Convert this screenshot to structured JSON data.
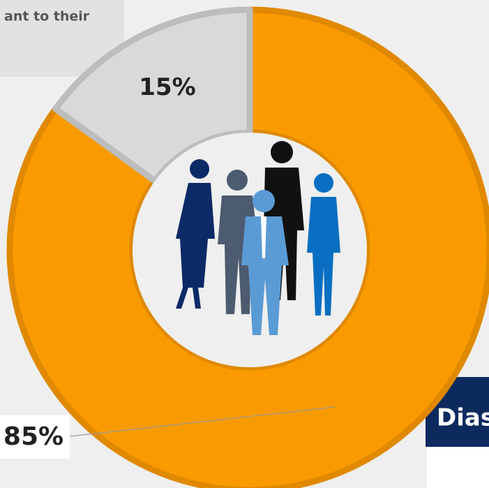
{
  "chart_data": {
    "type": "pie",
    "donut": true,
    "values": [
      85,
      15
    ],
    "value_labels": [
      "85%",
      "15%"
    ],
    "colors": [
      "#f99b00",
      "#d9d9d9"
    ],
    "edge_colors": [
      "#e08900",
      "#bdbdbd"
    ],
    "annotations": [
      "ant to their",
      "Dias"
    ]
  }
}
